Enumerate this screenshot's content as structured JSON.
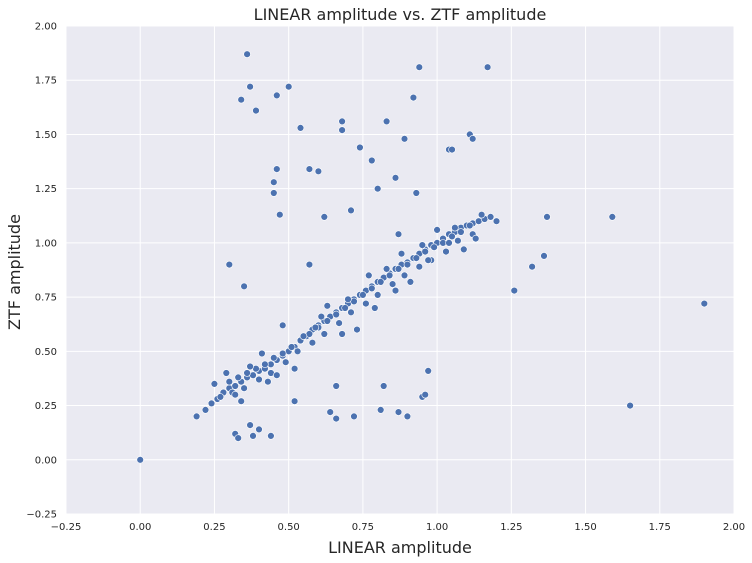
{
  "chart_data": {
    "type": "scatter",
    "title": "LINEAR amplitude vs. ZTF amplitude",
    "xlabel": "LINEAR amplitude",
    "ylabel": "ZTF amplitude",
    "xlim": [
      -0.25,
      2.0
    ],
    "ylim": [
      -0.25,
      2.0
    ],
    "xticks": [
      "−0.25",
      "0.00",
      "0.25",
      "0.50",
      "0.75",
      "1.00",
      "1.25",
      "1.50",
      "1.75",
      "2.00"
    ],
    "yticks": [
      "−0.25",
      "0.00",
      "0.25",
      "0.50",
      "0.75",
      "1.00",
      "1.25",
      "1.50",
      "1.75",
      "2.00"
    ],
    "grid": true,
    "colors": {
      "background": "#eaeaf2",
      "grid": "#ffffff",
      "point": "#4c72b0"
    },
    "x": [
      0.0,
      0.19,
      0.22,
      0.24,
      0.26,
      0.28,
      0.3,
      0.32,
      0.34,
      0.36,
      0.38,
      0.4,
      0.42,
      0.44,
      0.46,
      0.48,
      0.5,
      0.52,
      0.54,
      0.56,
      0.58,
      0.6,
      0.62,
      0.64,
      0.66,
      0.68,
      0.7,
      0.72,
      0.74,
      0.76,
      0.78,
      0.8,
      0.82,
      0.84,
      0.86,
      0.88,
      0.9,
      0.92,
      0.94,
      0.96,
      0.98,
      1.0,
      1.02,
      1.04,
      1.06,
      1.08,
      1.1,
      1.12,
      1.14,
      1.16,
      1.18,
      1.2,
      0.3,
      0.33,
      0.36,
      0.39,
      0.42,
      0.45,
      0.48,
      0.51,
      0.54,
      0.57,
      0.6,
      0.63,
      0.66,
      0.69,
      0.72,
      0.75,
      0.78,
      0.81,
      0.84,
      0.87,
      0.9,
      0.93,
      0.96,
      0.99,
      1.02,
      1.05,
      1.08,
      1.11,
      0.27,
      0.31,
      0.35,
      0.4,
      0.44,
      0.49,
      0.53,
      0.58,
      0.62,
      0.67,
      0.71,
      0.76,
      0.8,
      0.85,
      0.89,
      0.94,
      0.98,
      1.03,
      1.07,
      1.12,
      0.29,
      0.37,
      0.43,
      0.55,
      0.61,
      0.7,
      0.79,
      0.88,
      0.97,
      1.06,
      0.25,
      0.34,
      0.46,
      0.59,
      0.68,
      0.77,
      0.86,
      0.95,
      1.04,
      1.13,
      0.32,
      0.41,
      0.52,
      0.63,
      0.73,
      0.83,
      0.91,
      1.0,
      1.09,
      1.15,
      0.36,
      0.37,
      0.39,
      0.34,
      0.46,
      0.5,
      0.54,
      0.57,
      0.6,
      0.68,
      0.68,
      0.74,
      0.78,
      0.83,
      0.86,
      0.89,
      0.92,
      0.94,
      0.93,
      1.04,
      1.05,
      1.11,
      1.12,
      1.17,
      0.46,
      0.45,
      0.45,
      0.47,
      0.57,
      0.62,
      0.71,
      0.8,
      0.87,
      1.59,
      1.37,
      1.9,
      1.65,
      1.26,
      1.32,
      1.36,
      0.32,
      0.44,
      0.37,
      0.33,
      0.38,
      0.4,
      0.52,
      0.64,
      0.66,
      0.66,
      0.72,
      0.81,
      0.82,
      0.87,
      0.9,
      0.95,
      0.96,
      0.97,
      0.48,
      0.3,
      0.35
    ],
    "y": [
      0.0,
      0.2,
      0.23,
      0.26,
      0.28,
      0.31,
      0.33,
      0.34,
      0.36,
      0.38,
      0.39,
      0.41,
      0.42,
      0.44,
      0.46,
      0.48,
      0.5,
      0.52,
      0.55,
      0.57,
      0.6,
      0.62,
      0.64,
      0.66,
      0.68,
      0.7,
      0.72,
      0.74,
      0.76,
      0.78,
      0.8,
      0.82,
      0.84,
      0.86,
      0.88,
      0.9,
      0.91,
      0.93,
      0.95,
      0.97,
      0.99,
      1.0,
      1.02,
      1.04,
      1.05,
      1.07,
      1.08,
      1.09,
      1.1,
      1.11,
      1.12,
      1.1,
      0.36,
      0.38,
      0.4,
      0.42,
      0.44,
      0.47,
      0.49,
      0.52,
      0.55,
      0.58,
      0.61,
      0.64,
      0.67,
      0.7,
      0.73,
      0.76,
      0.79,
      0.82,
      0.85,
      0.88,
      0.9,
      0.93,
      0.96,
      0.98,
      1.0,
      1.03,
      1.05,
      1.08,
      0.29,
      0.31,
      0.33,
      0.37,
      0.4,
      0.45,
      0.5,
      0.54,
      0.58,
      0.63,
      0.68,
      0.72,
      0.76,
      0.81,
      0.85,
      0.89,
      0.92,
      0.96,
      1.01,
      1.04,
      0.4,
      0.43,
      0.36,
      0.57,
      0.66,
      0.74,
      0.7,
      0.95,
      0.92,
      1.07,
      0.35,
      0.27,
      0.39,
      0.61,
      0.58,
      0.85,
      0.78,
      0.99,
      1.0,
      1.02,
      0.3,
      0.49,
      0.42,
      0.71,
      0.6,
      0.88,
      0.82,
      1.06,
      0.97,
      1.13,
      1.87,
      1.72,
      1.61,
      1.66,
      1.68,
      1.72,
      1.53,
      1.34,
      1.33,
      1.56,
      1.52,
      1.44,
      1.38,
      1.56,
      1.3,
      1.48,
      1.67,
      1.81,
      1.23,
      1.43,
      1.43,
      1.5,
      1.48,
      1.81,
      1.34,
      1.28,
      1.23,
      1.13,
      0.9,
      1.12,
      1.15,
      1.25,
      1.04,
      1.12,
      1.12,
      0.72,
      0.25,
      0.78,
      0.89,
      0.94,
      0.12,
      0.11,
      0.16,
      0.1,
      0.11,
      0.14,
      0.27,
      0.22,
      0.19,
      0.34,
      0.2,
      0.23,
      0.34,
      0.22,
      0.2,
      0.29,
      0.3,
      0.41,
      0.62,
      0.9,
      0.8
    ]
  }
}
